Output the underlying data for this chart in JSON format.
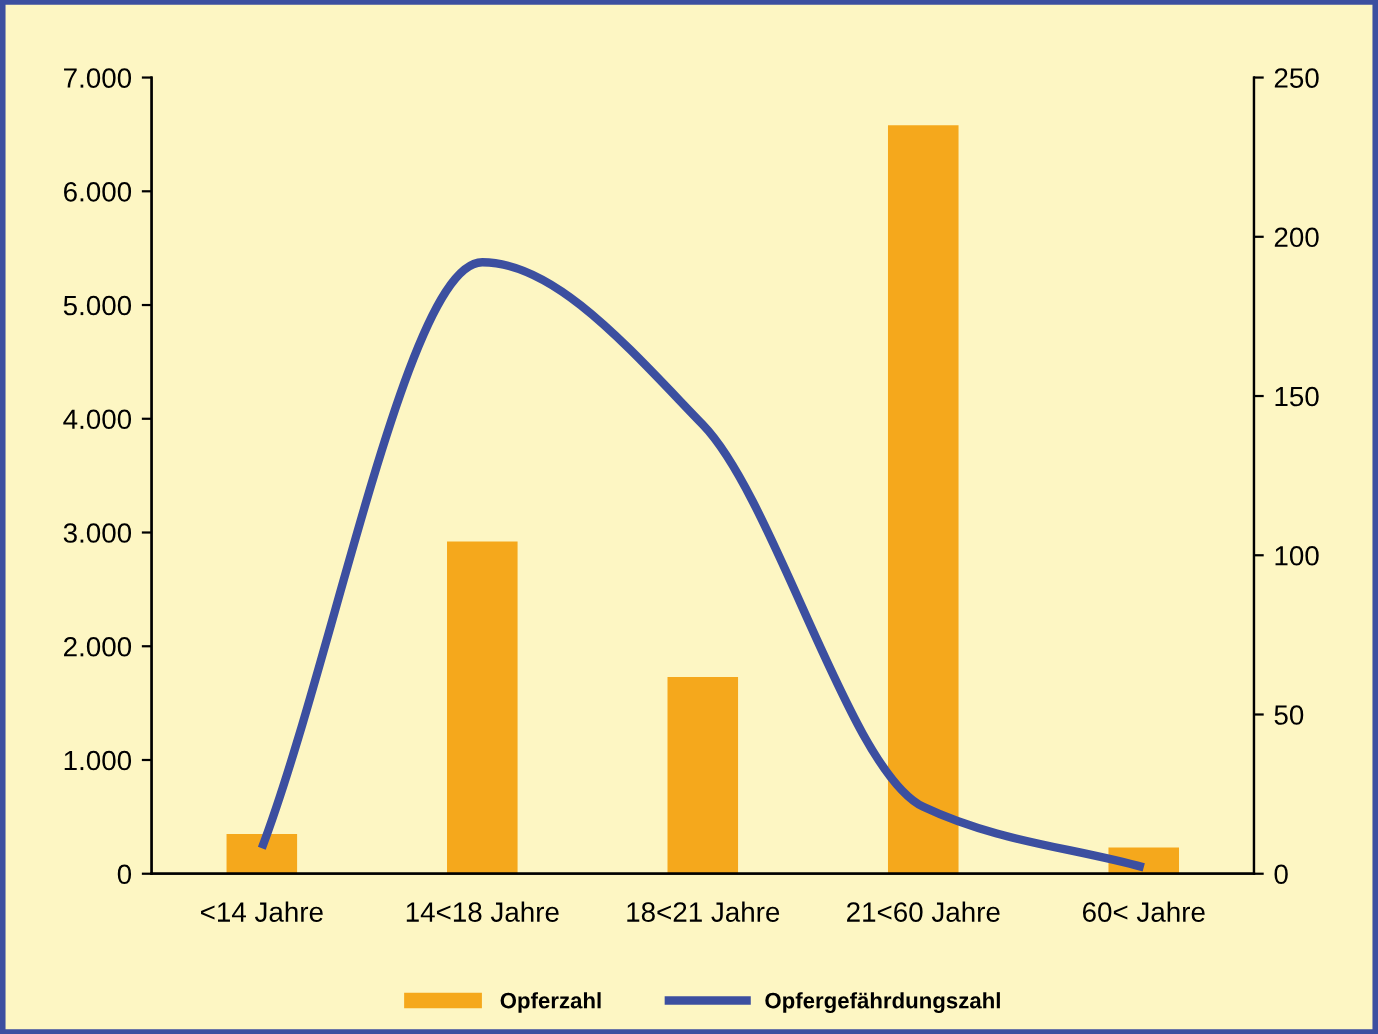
{
  "chart_data": {
    "type": "bar",
    "categories": [
      "<14 Jahre",
      "14<18 Jahre",
      "18<21 Jahre",
      "21<60 Jahre",
      "60< Jahre"
    ],
    "series": [
      {
        "name": "Opferzahl",
        "color": "#f5a81c",
        "values": [
          350,
          2920,
          1730,
          6580,
          230
        ]
      },
      {
        "name": "Opfergefährdungszahl",
        "type": "line",
        "axis": "y2",
        "color": "#3c4fa0",
        "values": [
          8,
          192,
          141,
          21,
          2
        ]
      }
    ],
    "ylim": [
      0,
      7000
    ],
    "yticks": [
      0,
      {
        "value": 1000,
        "label": "1.000"
      },
      {
        "value": 2000,
        "label": "2.000"
      },
      {
        "value": 3000,
        "label": "3.000"
      },
      {
        "value": 4000,
        "label": "4.000"
      },
      {
        "value": 5000,
        "label": "5.000"
      },
      {
        "value": 6000,
        "label": "6.000"
      },
      {
        "value": 7000,
        "label": "7.000"
      }
    ],
    "y2lim": [
      0,
      250
    ],
    "y2ticks": [
      0,
      50,
      100,
      150,
      200,
      250
    ],
    "grid": false,
    "legend": "bottom",
    "marker": "none",
    "line_style": "solid"
  }
}
